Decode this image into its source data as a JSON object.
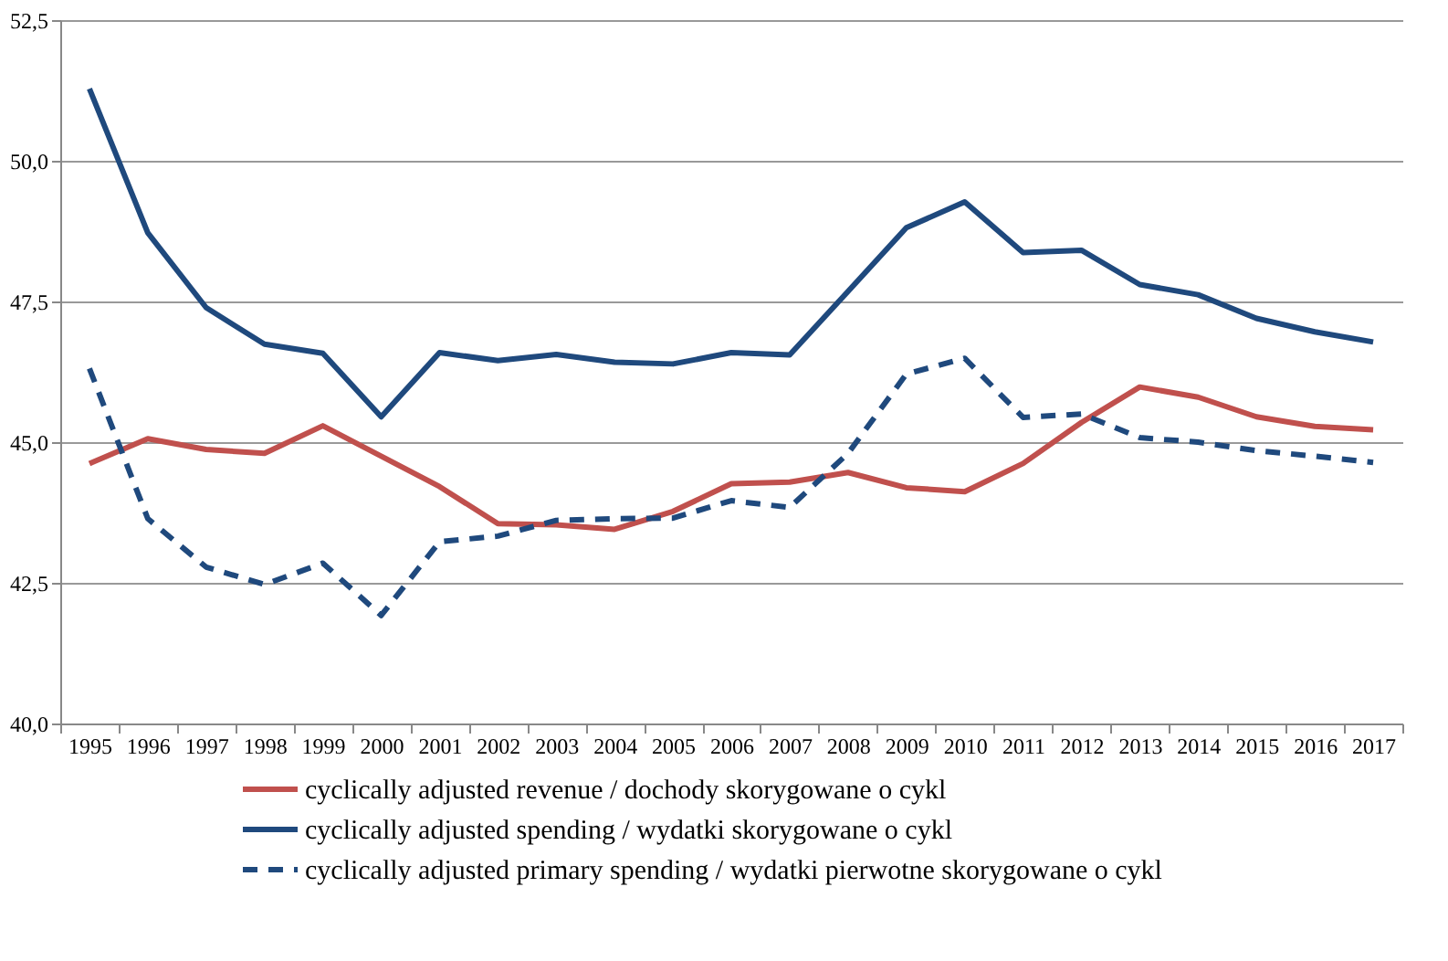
{
  "chart_data": {
    "type": "line",
    "categories": [
      "1995",
      "1996",
      "1997",
      "1998",
      "1999",
      "2000",
      "2001",
      "2002",
      "2003",
      "2004",
      "2005",
      "2006",
      "2007",
      "2008",
      "2009",
      "2010",
      "2011",
      "2012",
      "2013",
      "2014",
      "2015",
      "2016",
      "2017"
    ],
    "series": [
      {
        "name": "cyclically adjusted revenue / dochody skorygowane o cykl",
        "color": "#c0504d",
        "line_style": "solid",
        "values": [
          44.62,
          45.06,
          44.87,
          44.8,
          45.29,
          44.75,
          44.21,
          43.55,
          43.53,
          43.45,
          43.77,
          44.26,
          44.29,
          44.46,
          44.19,
          44.12,
          44.62,
          45.35,
          45.98,
          45.8,
          45.45,
          45.28,
          45.22
        ]
      },
      {
        "name": "cyclically adjusted spending / wydatki skorygowane o cykl",
        "color": "#1f497d",
        "line_style": "solid",
        "values": [
          51.28,
          48.72,
          47.39,
          46.74,
          46.58,
          45.45,
          46.59,
          46.45,
          46.56,
          46.42,
          46.39,
          46.59,
          46.55,
          47.68,
          48.81,
          49.27,
          48.37,
          48.41,
          47.8,
          47.62,
          47.2,
          46.96,
          46.78
        ]
      },
      {
        "name": "cyclically adjusted primary spending / wydatki pierwotne skorygowane o cykl",
        "color": "#1f497d",
        "line_style": "dashed",
        "values": [
          46.31,
          43.64,
          42.78,
          42.47,
          42.85,
          41.92,
          43.23,
          43.33,
          43.61,
          43.64,
          43.65,
          43.96,
          43.84,
          44.8,
          46.21,
          46.49,
          45.44,
          45.5,
          45.08,
          45.0,
          44.85,
          44.75,
          44.64
        ]
      }
    ],
    "ylim": [
      40,
      52.5
    ],
    "yticks": [
      {
        "value": 40,
        "label": "40,0"
      },
      {
        "value": 42.5,
        "label": "42,5"
      },
      {
        "value": 45,
        "label": "45,0"
      },
      {
        "value": 47.5,
        "label": "47,5"
      },
      {
        "value": 50,
        "label": "50,0"
      },
      {
        "value": 52.5,
        "label": "52,5"
      }
    ],
    "grid": "y",
    "legend": "bottom",
    "marker": "none"
  }
}
